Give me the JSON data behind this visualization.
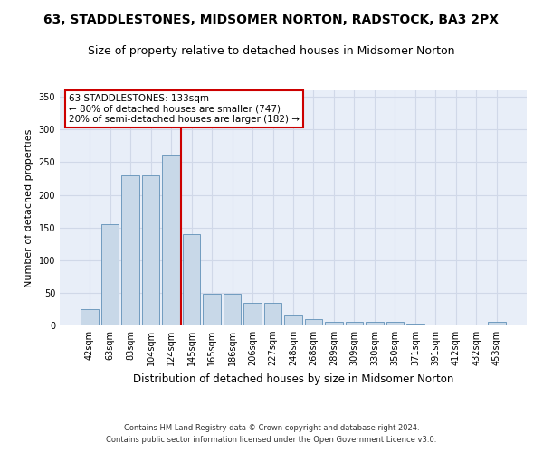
{
  "title1": "63, STADDLESTONES, MIDSOMER NORTON, RADSTOCK, BA3 2PX",
  "title2": "Size of property relative to detached houses in Midsomer Norton",
  "xlabel": "Distribution of detached houses by size in Midsomer Norton",
  "ylabel": "Number of detached properties",
  "footer1": "Contains HM Land Registry data © Crown copyright and database right 2024.",
  "footer2": "Contains public sector information licensed under the Open Government Licence v3.0.",
  "categories": [
    "42sqm",
    "63sqm",
    "83sqm",
    "104sqm",
    "124sqm",
    "145sqm",
    "165sqm",
    "186sqm",
    "206sqm",
    "227sqm",
    "248sqm",
    "268sqm",
    "289sqm",
    "309sqm",
    "330sqm",
    "350sqm",
    "371sqm",
    "391sqm",
    "412sqm",
    "432sqm",
    "453sqm"
  ],
  "values": [
    25,
    155,
    230,
    230,
    260,
    140,
    48,
    48,
    35,
    35,
    15,
    10,
    6,
    6,
    5,
    5,
    3,
    0,
    0,
    0,
    5
  ],
  "bar_color": "#c8d8e8",
  "bar_edge_color": "#6090b8",
  "grid_color": "#d0d8e8",
  "background_color": "#e8eef8",
  "annotation_text": "63 STADDLESTONES: 133sqm\n← 80% of detached houses are smaller (747)\n20% of semi-detached houses are larger (182) →",
  "annotation_box_color": "#ffffff",
  "annotation_box_edge": "#cc0000",
  "vline_x": 4.5,
  "vline_color": "#cc0000",
  "ylim": [
    0,
    360
  ],
  "yticks": [
    0,
    50,
    100,
    150,
    200,
    250,
    300,
    350
  ],
  "title1_fontsize": 10,
  "title2_fontsize": 9,
  "xlabel_fontsize": 8.5,
  "ylabel_fontsize": 8,
  "tick_fontsize": 7,
  "annotation_fontsize": 7.5,
  "footer_fontsize": 6,
  "figsize": [
    6.0,
    5.0
  ],
  "dpi": 100
}
